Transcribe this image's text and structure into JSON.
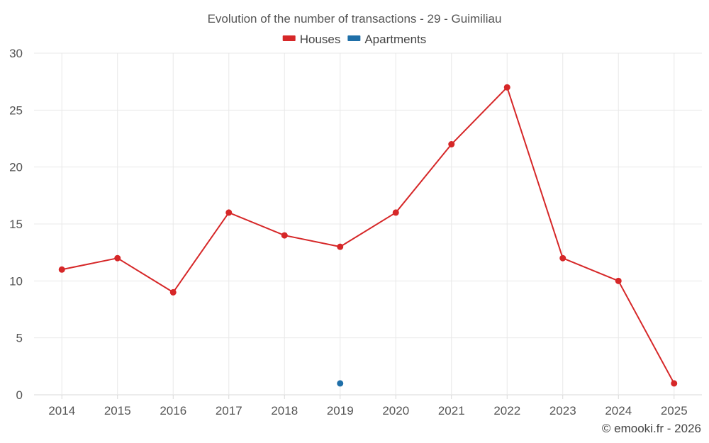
{
  "chart_data": {
    "type": "line",
    "title": "Evolution of the number of transactions - 29 - Guimiliau",
    "categories": [
      "2014",
      "2015",
      "2016",
      "2017",
      "2018",
      "2019",
      "2020",
      "2021",
      "2022",
      "2023",
      "2024",
      "2025"
    ],
    "series": [
      {
        "name": "Houses",
        "color": "#d62728",
        "values": [
          11,
          12,
          9,
          16,
          14,
          13,
          16,
          22,
          27,
          12,
          10,
          1
        ]
      },
      {
        "name": "Apartments",
        "color": "#1f6fa8",
        "values": [
          null,
          null,
          null,
          null,
          null,
          1,
          null,
          null,
          null,
          null,
          null,
          null
        ]
      }
    ],
    "y_ticks": [
      "0",
      "5",
      "10",
      "15",
      "20",
      "25",
      "30"
    ],
    "ylim": [
      0,
      30
    ],
    "legend_position": "top-center",
    "grid": true,
    "xlabel": "",
    "ylabel": ""
  },
  "footer": "© emooki.fr - 2026"
}
